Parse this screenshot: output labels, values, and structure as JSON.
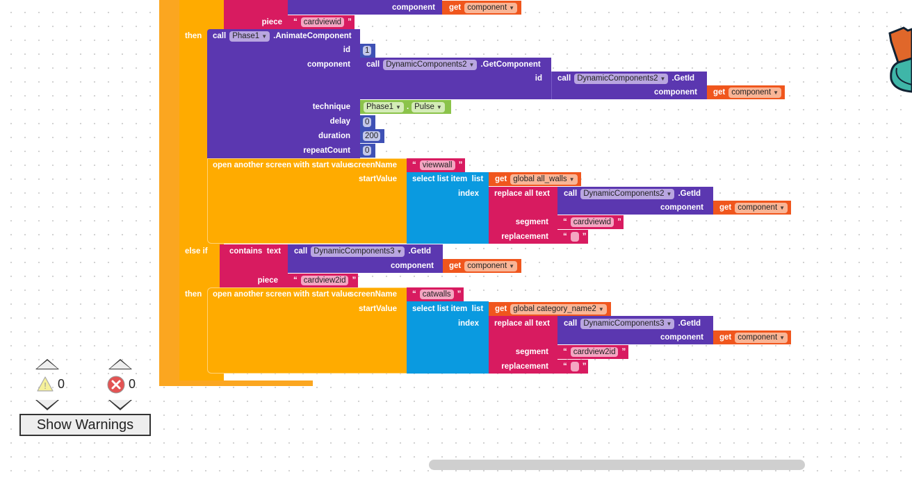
{
  "kw": {
    "call": "call",
    "get": "get",
    "then": "then",
    "else_if": "else if",
    "contains": "contains",
    "text": "text",
    "open_screen": "open another screen with start value",
    "select_list": "select list item",
    "list": "list",
    "replace_all": "replace all text",
    "q_open": "“",
    "q_close": "”",
    "dot": "."
  },
  "labels": {
    "component": "component",
    "piece": "piece",
    "id": "id",
    "technique": "technique",
    "delay": "delay",
    "duration": "duration",
    "repeatCount": "repeatCount",
    "screenName": "screenName",
    "startValue": "startValue",
    "index": "index",
    "segment": "segment",
    "replacement": "replacement"
  },
  "cond1": {
    "get_var": "component",
    "piece": "cardviewid"
  },
  "animate": {
    "component": "Phase1",
    "method": ".AnimateComponent",
    "id": "1",
    "getcomp_component": "DynamicComponents2",
    "getcomp_method": ".GetComponent",
    "getid_component": "DynamicComponents2",
    "getid_method": ".GetId",
    "get_var": "component",
    "technique_component": "Phase1",
    "technique_value": "Pulse",
    "delay": "0",
    "duration": "200",
    "repeatCount": "0"
  },
  "open1": {
    "screenName": "viewwall",
    "list_var": "global all_walls",
    "getid_component": "DynamicComponents2",
    "getid_method": ".GetId",
    "get_var": "component",
    "segment": "cardviewid",
    "replacement": ""
  },
  "cond2": {
    "getid_component": "DynamicComponents3",
    "getid_method": ".GetId",
    "get_var": "component",
    "piece": "cardview2id"
  },
  "open2": {
    "screenName": "catwalls",
    "list_var": "global category_name2",
    "getid_component": "DynamicComponents3",
    "getid_method": ".GetId",
    "get_var": "component",
    "segment": "cardview2id",
    "replacement": ""
  },
  "warnings": {
    "warning_count": "0",
    "error_count": "0",
    "show_warnings": "Show Warnings"
  },
  "colors": {
    "control": "#ffab00",
    "procedure": "#5b37b0",
    "text": "#d81b60",
    "variable": "#f0561d",
    "list": "#0a9ae0",
    "math": "#3f51b5",
    "helper": "#8bc34a"
  }
}
